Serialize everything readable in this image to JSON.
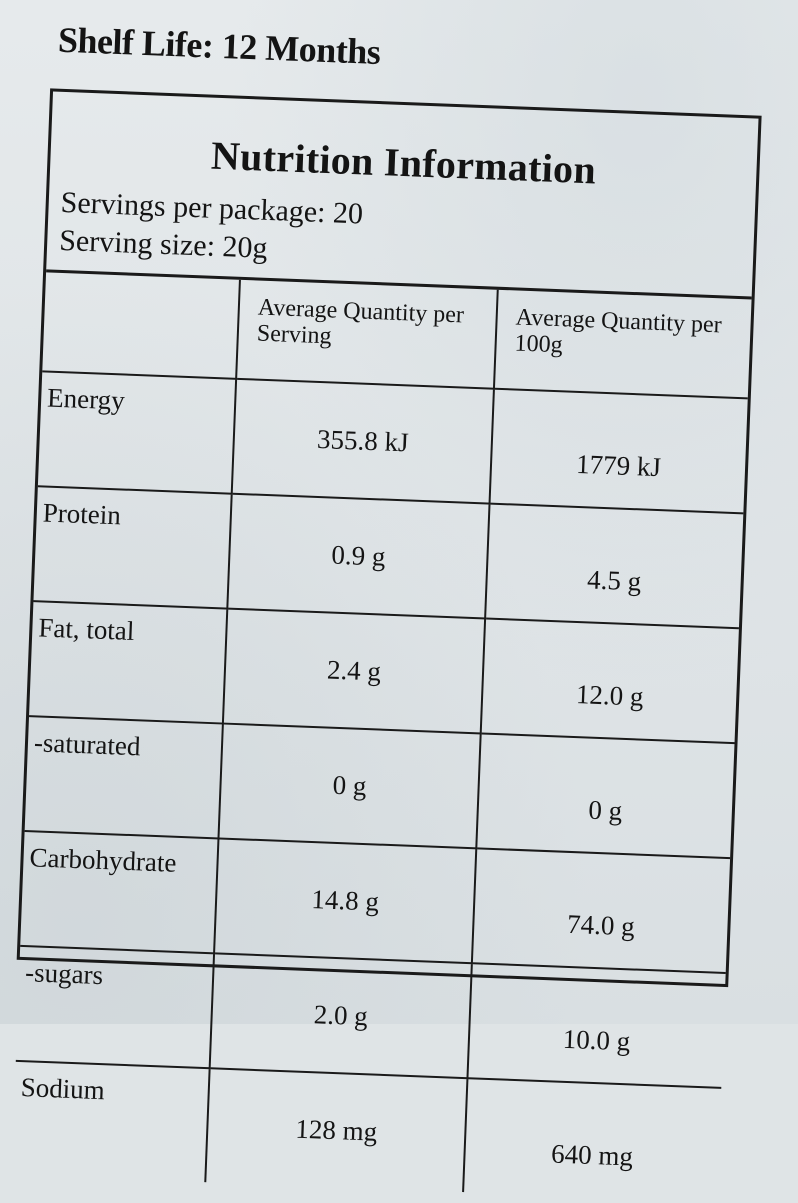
{
  "shelf_life": "Shelf Life: 12 Months",
  "panel": {
    "title": "Nutrition Information",
    "servings_per_package": "Servings per package: 20",
    "serving_size": "Serving size: 20g"
  },
  "table": {
    "headers": {
      "blank": "",
      "per_serving": "Average Quantity per Serving",
      "per_100g": "Average Quantity per 100g"
    },
    "rows": [
      {
        "nutrient": "Energy",
        "per_serving": "355.8 kJ",
        "per_100g": "1779 kJ"
      },
      {
        "nutrient": "Protein",
        "per_serving": "0.9 g",
        "per_100g": "4.5 g"
      },
      {
        "nutrient": "Fat, total",
        "per_serving": "2.4 g",
        "per_100g": "12.0 g"
      },
      {
        "nutrient": "-saturated",
        "per_serving": "0 g",
        "per_100g": "0 g"
      },
      {
        "nutrient": "Carbohydrate",
        "per_serving": "14.8 g",
        "per_100g": "74.0 g"
      },
      {
        "nutrient": "-sugars",
        "per_serving": "2.0 g",
        "per_100g": "10.0 g"
      },
      {
        "nutrient": "Sodium",
        "per_serving": "128 mg",
        "per_100g": "640 mg"
      }
    ]
  },
  "colors": {
    "paper": "#dfe4e6",
    "ink": "#141414"
  }
}
